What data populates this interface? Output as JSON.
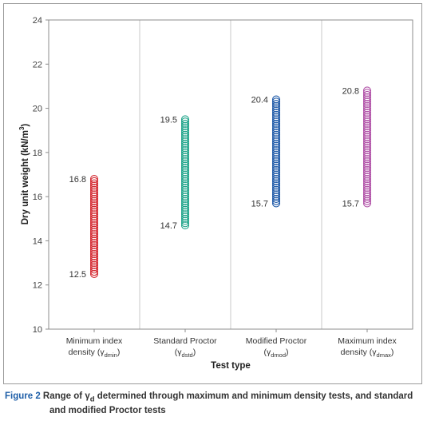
{
  "chart_data": {
    "type": "scatter",
    "xlabel": "Test type",
    "ylabel_main": "Dry unit weight (kN/m",
    "ylabel_sup": "3",
    "ylabel_end": ")",
    "ylim": [
      10,
      24
    ],
    "yticks": [
      10,
      12,
      14,
      16,
      18,
      20,
      22,
      24
    ],
    "grid": "vertical",
    "categories": [
      {
        "line1": "Minimum index",
        "line2": "density (γ",
        "sub": "dmin",
        "end": ")"
      },
      {
        "line1": "Standard Proctor",
        "line2": "(γ",
        "sub": "dstd",
        "end": ")"
      },
      {
        "line1": "Modified Proctor",
        "line2": "(γ",
        "sub": "dmod",
        "end": ")"
      },
      {
        "line1": "Maximum index",
        "line2": "density (γ",
        "sub": "dmax",
        "end": ")"
      }
    ],
    "series": [
      {
        "min": 12.5,
        "max": 16.8,
        "min_label": "12.5",
        "max_label": "16.8",
        "color": "#d42a32"
      },
      {
        "min": 14.7,
        "max": 19.5,
        "min_label": "14.7",
        "max_label": "19.5",
        "color": "#1fa48a"
      },
      {
        "min": 15.7,
        "max": 20.4,
        "min_label": "15.7",
        "max_label": "20.4",
        "color": "#1f5aa8"
      },
      {
        "min": 15.7,
        "max": 20.8,
        "min_label": "15.7",
        "max_label": "20.8",
        "color": "#b153a8"
      }
    ]
  },
  "caption": {
    "prefix": "Figure 2",
    "text1": " Range of γ",
    "sub": "d",
    "text2": " determined through maximum and minimum density tests, and standard",
    "line2": "and modified Proctor tests"
  }
}
